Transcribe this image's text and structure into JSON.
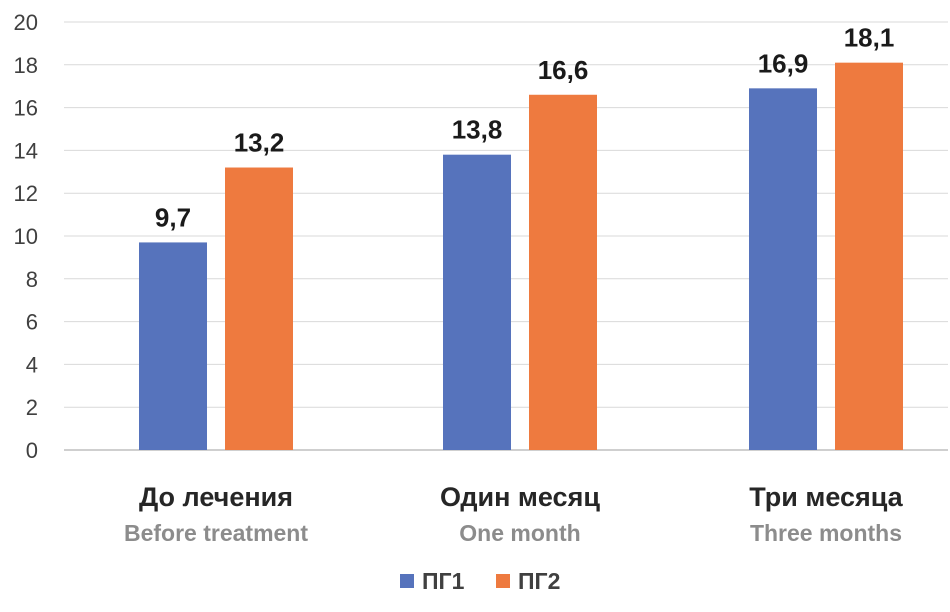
{
  "chart_data": {
    "type": "bar",
    "title": "",
    "xlabel": "",
    "ylabel": "",
    "ylim": [
      0,
      20
    ],
    "yticks": [
      0,
      2,
      4,
      6,
      8,
      10,
      12,
      14,
      16,
      18,
      20
    ],
    "grid": true,
    "legend_position": "bottom-center",
    "categories": [
      {
        "ru": "До лечения",
        "en": "Before treatment"
      },
      {
        "ru": "Один месяц",
        "en": "One month"
      },
      {
        "ru": "Три месяца",
        "en": "Three months"
      }
    ],
    "series": [
      {
        "name": "ПГ1",
        "color": "#5673BC",
        "values": [
          9.7,
          13.8,
          16.9
        ],
        "labels": [
          "9,7",
          "13,8",
          "16,9"
        ]
      },
      {
        "name": "ПГ2",
        "color": "#EE7A3F",
        "values": [
          13.2,
          16.6,
          18.1
        ],
        "labels": [
          "13,2",
          "16,6",
          "18,1"
        ]
      }
    ]
  }
}
